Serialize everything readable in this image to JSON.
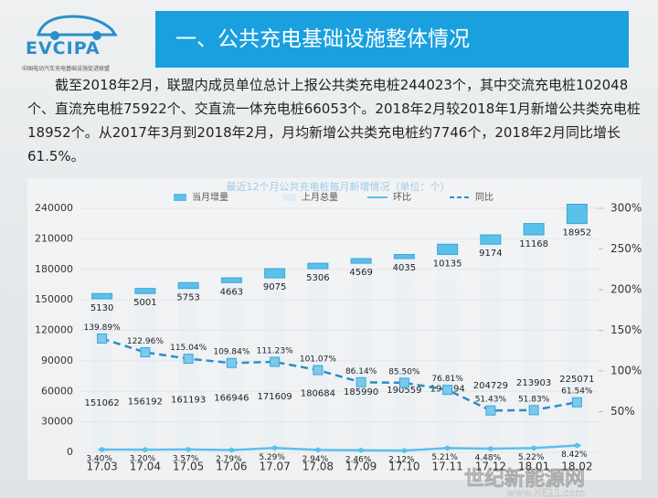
{
  "header": {
    "logo": "EVCIPA",
    "org": "中国电动汽车充电基础设施促进联盟",
    "title": "一、公共充电基础设施整体情况"
  },
  "paragraph": "截至2018年2月，联盟内成员单位总计上报公共类充电桩244023个，其中交流充电桩102048个、直流充电桩75922个、交直流一体充电桩66053个。2018年2月较2018年1月新增公共类充电桩18952个。从2017年3月到2018年2月，月均新增公共类充电桩约7746个，2018年2月同比增长61.5%。",
  "watermark": {
    "name": "世纪新能源网",
    "url": "www.NE21.com"
  },
  "chart_data": {
    "type": "bar",
    "title": "最近12个月公共充电桩每月新增情况（单位：个）",
    "categories": [
      "17.03",
      "17.04",
      "17.05",
      "17.06",
      "17.07",
      "17.08",
      "17.09",
      "17.10",
      "17.11",
      "17.12",
      "18.01",
      "18.02"
    ],
    "ylim": [
      0,
      240000
    ],
    "yticks": [
      0,
      30000,
      60000,
      90000,
      120000,
      150000,
      180000,
      210000,
      240000
    ],
    "y2lim": [
      0,
      300
    ],
    "y2ticks": [
      {
        "value": 50,
        "label": "50%"
      },
      {
        "value": 100,
        "label": "100%"
      },
      {
        "value": 150,
        "label": "150%"
      },
      {
        "value": 200,
        "label": "200%"
      },
      {
        "value": 250,
        "label": "250%"
      },
      {
        "value": 300,
        "label": "300%"
      }
    ],
    "series": [
      {
        "name": "当月增量",
        "type": "bar",
        "color": "#5bc0ea",
        "values": [
          5130,
          5001,
          5753,
          4663,
          9075,
          5306,
          4569,
          4035,
          10135,
          9174,
          11168,
          18952
        ]
      },
      {
        "name": "上月总量",
        "type": "bar",
        "color": "#dfeef6",
        "values": [
          151062,
          156192,
          161193,
          166946,
          171609,
          180684,
          185990,
          190559,
          194594,
          204729,
          213903,
          225071
        ]
      },
      {
        "name": "环比",
        "type": "line",
        "axis": "y2",
        "color": "#5bc0ea",
        "values": [
          3.4,
          3.2,
          3.57,
          2.79,
          5.29,
          2.94,
          2.46,
          2.12,
          5.21,
          4.48,
          5.22,
          8.42
        ],
        "value_labels": [
          "3.40%",
          "3.20%",
          "3.57%",
          "2.79%",
          "5.29%",
          "2.94%",
          "2.46%",
          "2.12%",
          "5.21%",
          "4.48%",
          "5.22%",
          "8.42%"
        ]
      },
      {
        "name": "同比",
        "type": "line",
        "axis": "y2",
        "color": "#2a8fc9",
        "values": [
          139.89,
          122.96,
          115.04,
          109.84,
          111.23,
          101.07,
          86.14,
          85.5,
          76.81,
          51.43,
          51.83,
          61.54
        ],
        "value_labels": [
          "139.89%",
          "122.96%",
          "115.04%",
          "109.84%",
          "111.23%",
          "101.07%",
          "86.14%",
          "85.50%",
          "76.81%",
          "51.43%",
          "51.83%",
          "61.54%"
        ]
      }
    ]
  }
}
